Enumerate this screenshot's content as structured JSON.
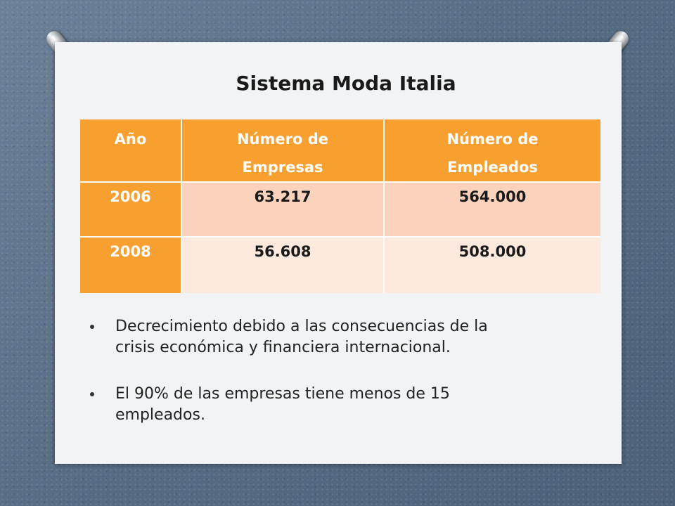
{
  "title": "Sistema Moda Italia",
  "table": {
    "headers": {
      "year": "Año",
      "companies_line1": "Número de",
      "companies_line2": "Empresas",
      "employees_line1": "Número de",
      "employees_line2": "Empleados"
    },
    "rows": [
      {
        "year": "2006",
        "companies": "63.217",
        "employees": "564.000"
      },
      {
        "year": "2008",
        "companies": "56.608",
        "employees": "508.000"
      }
    ]
  },
  "bullets": [
    {
      "line1": "Decrecimiento debido a las consecuencias de la",
      "line2": "crisis económica y financiera internacional."
    },
    {
      "line1": "El 90% de las empresas tiene menos de 15",
      "line2": "empleados."
    }
  ],
  "colors": {
    "header_orange": "#f7a030",
    "row_odd": "#fbd3bd",
    "row_even": "#fde9de",
    "slide_bg": "#f1f3f4",
    "backdrop": "#5b7188"
  }
}
